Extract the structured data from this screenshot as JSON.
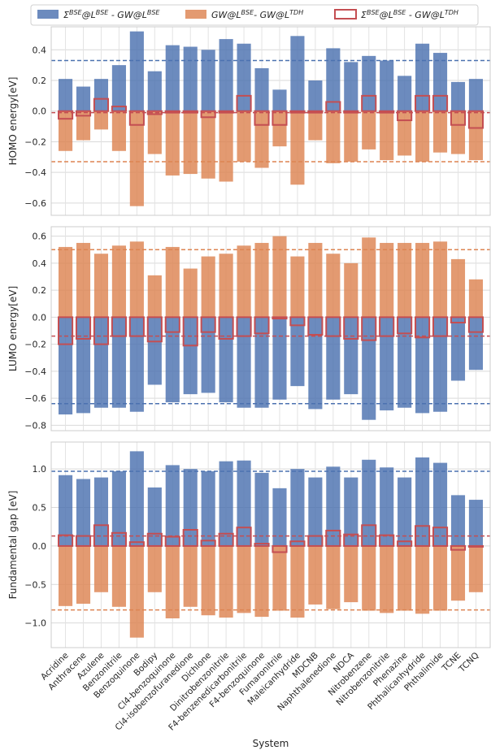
{
  "chart_data": {
    "type": "bar",
    "categories": [
      "Acridine",
      "Anthracene",
      "Azulene",
      "Benzonitrile",
      "Benzoquinone",
      "Bodipy",
      "Cl4-benzoquinone",
      "Cl4-isobenzofuranedione",
      "Dichlone",
      "Dinitrobenzonitrile",
      "F4-benzenedicarbonitrile",
      "F4-benzoquinone",
      "Fumaronitrile",
      "Maleicanhydride",
      "MDCNB",
      "Naphthalenedione",
      "NDCA",
      "Nitrobenzene",
      "Nitrobenzonitrile",
      "Phenazine",
      "Phthalicanhydride",
      "Phthalimide",
      "TCNE",
      "TCNQ"
    ],
    "xlabel": "System",
    "legend": {
      "placement": "top",
      "entries": [
        {
          "pre": "Σ",
          "s1": "BSE",
          "mid1": "@L",
          "s2": "BSE",
          "mid2": " - GW@L",
          "s3": "BSE",
          "post": ""
        },
        {
          "pre": "GW@L",
          "s1": "BSE",
          "mid1": "- GW@L",
          "s2": "TDH",
          "mid2": "",
          "s3": "",
          "post": ""
        },
        {
          "pre": "Σ",
          "s1": "BSE",
          "mid1": "@L",
          "s2": "BSE",
          "mid2": " - GW@L",
          "s3": "TDH",
          "post": ""
        }
      ]
    },
    "colors": {
      "blue": "#4c72b0",
      "orange": "#dd8452",
      "red": "#c44e52"
    },
    "panels": [
      {
        "ylabel": "HOMO energy[eV]",
        "ylim": [
          -0.68,
          0.55
        ],
        "yticks": [
          -0.6,
          -0.4,
          -0.2,
          0.0,
          0.2,
          0.4
        ],
        "tick_labels": [
          "−0.6",
          "−0.4",
          "−0.2",
          "0.0",
          "0.2",
          "0.4"
        ],
        "series": [
          {
            "key": "blue",
            "values": [
              0.21,
              0.16,
              0.21,
              0.3,
              0.52,
              0.26,
              0.43,
              0.42,
              0.4,
              0.47,
              0.44,
              0.28,
              0.14,
              0.49,
              0.2,
              0.41,
              0.32,
              0.36,
              0.33,
              0.23,
              0.44,
              0.38,
              0.19,
              0.21
            ]
          },
          {
            "key": "orange",
            "values": [
              -0.26,
              -0.19,
              -0.12,
              -0.26,
              -0.62,
              -0.28,
              -0.42,
              -0.41,
              -0.44,
              -0.46,
              -0.33,
              -0.37,
              -0.23,
              -0.48,
              -0.19,
              -0.34,
              -0.33,
              -0.25,
              -0.32,
              -0.29,
              -0.33,
              -0.27,
              -0.28,
              -0.32
            ]
          },
          {
            "key": "red",
            "values": [
              -0.05,
              -0.03,
              0.08,
              0.03,
              -0.09,
              -0.02,
              -0.01,
              -0.01,
              -0.04,
              -0.01,
              0.1,
              -0.09,
              -0.09,
              -0.01,
              -0.01,
              0.06,
              -0.01,
              0.1,
              -0.01,
              -0.06,
              0.1,
              0.1,
              -0.09,
              -0.11
            ]
          }
        ],
        "hlines": {
          "blue": 0.33,
          "orange": -0.33,
          "red": -0.01
        }
      },
      {
        "ylabel": "LUMO energy[eV]",
        "ylim": [
          -0.84,
          0.67
        ],
        "yticks": [
          -0.8,
          -0.6,
          -0.4,
          -0.2,
          0.0,
          0.2,
          0.4,
          0.6
        ],
        "tick_labels": [
          "−0.8",
          "−0.6",
          "−0.4",
          "−0.2",
          "0.0",
          "0.2",
          "0.4",
          "0.6"
        ],
        "series": [
          {
            "key": "blue",
            "values": [
              -0.72,
              -0.71,
              -0.67,
              -0.67,
              -0.7,
              -0.5,
              -0.63,
              -0.57,
              -0.56,
              -0.63,
              -0.67,
              -0.67,
              -0.61,
              -0.51,
              -0.68,
              -0.61,
              -0.57,
              -0.76,
              -0.69,
              -0.67,
              -0.71,
              -0.7,
              -0.47,
              -0.39
            ]
          },
          {
            "key": "orange",
            "values": [
              0.52,
              0.55,
              0.47,
              0.53,
              0.56,
              0.31,
              0.52,
              0.36,
              0.45,
              0.47,
              0.53,
              0.55,
              0.6,
              0.45,
              0.55,
              0.47,
              0.4,
              0.59,
              0.55,
              0.55,
              0.55,
              0.56,
              0.43,
              0.28
            ]
          },
          {
            "key": "red",
            "values": [
              -0.2,
              -0.16,
              -0.2,
              -0.14,
              -0.14,
              -0.18,
              -0.11,
              -0.21,
              -0.11,
              -0.16,
              -0.14,
              -0.12,
              -0.01,
              -0.06,
              -0.13,
              -0.14,
              -0.16,
              -0.17,
              -0.14,
              -0.12,
              -0.15,
              -0.14,
              -0.04,
              -0.11
            ]
          }
        ],
        "hlines": {
          "blue": -0.64,
          "orange": 0.5,
          "red": -0.14
        }
      },
      {
        "ylabel": "Fundamental gap [eV]",
        "ylim": [
          -1.32,
          1.35
        ],
        "yticks": [
          -1.0,
          -0.5,
          0.0,
          0.5,
          1.0
        ],
        "tick_labels": [
          "−1.0",
          "−0.5",
          "0.0",
          "0.5",
          "1.0"
        ],
        "series": [
          {
            "key": "blue",
            "values": [
              0.92,
              0.87,
              0.89,
              0.97,
              1.23,
              0.76,
              1.05,
              1.0,
              0.97,
              1.1,
              1.11,
              0.95,
              0.75,
              1.0,
              0.89,
              1.03,
              0.89,
              1.12,
              1.02,
              0.89,
              1.15,
              1.08,
              0.66,
              0.6
            ]
          },
          {
            "key": "orange",
            "values": [
              -0.78,
              -0.75,
              -0.6,
              -0.79,
              -1.19,
              -0.6,
              -0.94,
              -0.79,
              -0.9,
              -0.93,
              -0.87,
              -0.92,
              -0.84,
              -0.93,
              -0.76,
              -0.82,
              -0.73,
              -0.84,
              -0.87,
              -0.84,
              -0.88,
              -0.84,
              -0.71,
              -0.6
            ]
          },
          {
            "key": "red",
            "values": [
              0.14,
              0.13,
              0.27,
              0.17,
              0.05,
              0.16,
              0.12,
              0.21,
              0.07,
              0.16,
              0.24,
              0.03,
              -0.08,
              0.06,
              0.13,
              0.2,
              0.15,
              0.27,
              0.14,
              0.06,
              0.26,
              0.24,
              -0.05,
              -0.01
            ]
          }
        ],
        "hlines": {
          "blue": 0.97,
          "orange": -0.83,
          "red": 0.13
        }
      }
    ]
  }
}
